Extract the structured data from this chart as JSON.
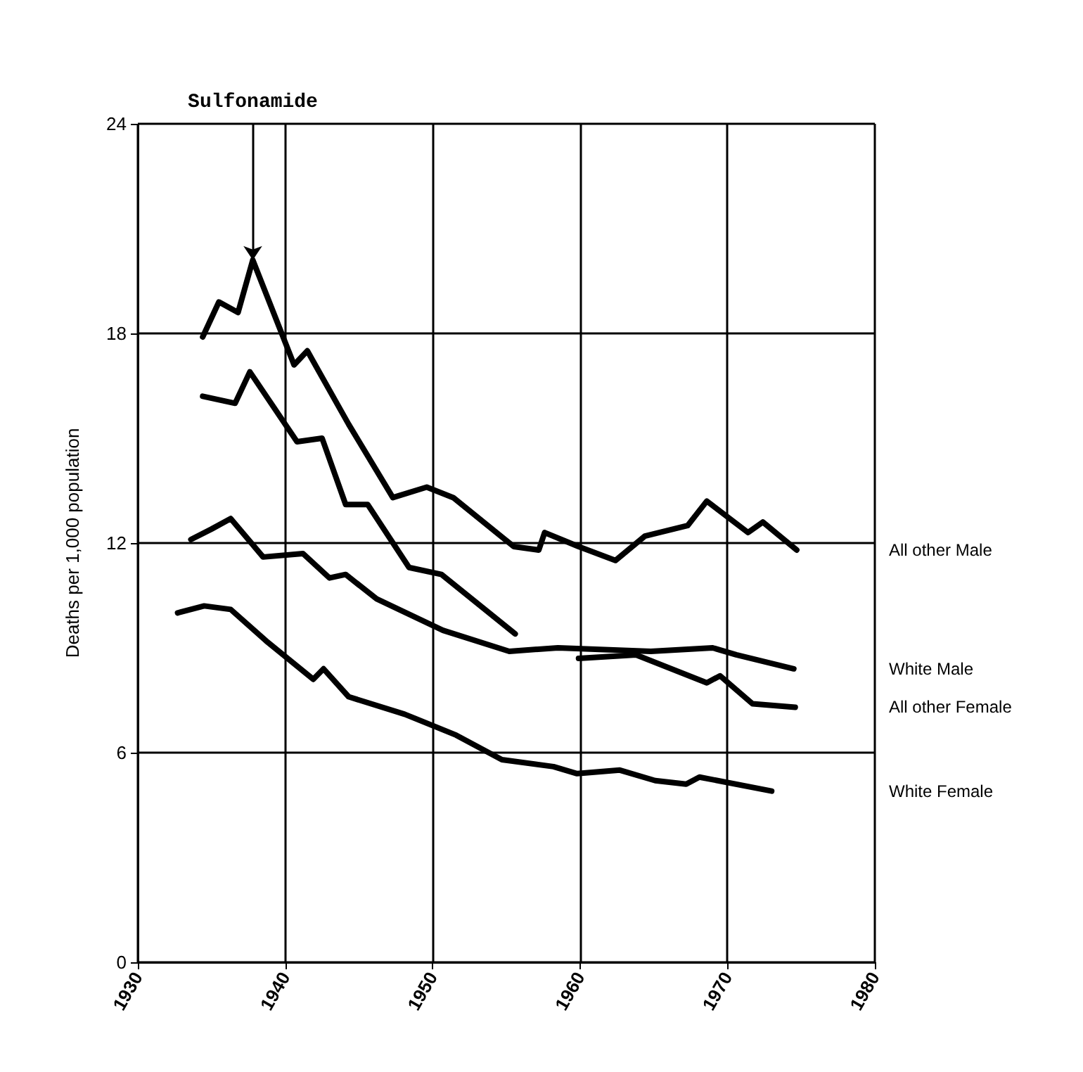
{
  "chart_data": {
    "type": "line",
    "ylabel": "Deaths per 1,000 population",
    "annotations": [
      {
        "text": "Sulfonamide",
        "x": 1937.8,
        "y": 20.1
      }
    ],
    "xlim": [
      1930,
      1980
    ],
    "xticks": [
      1930,
      1940,
      1950,
      1960,
      1970,
      1980
    ],
    "ylim": [
      0,
      24
    ],
    "yticks": [
      0,
      6,
      12,
      18,
      24
    ],
    "grid": true,
    "marker": "none",
    "line_style": "solid",
    "series": [
      {
        "name": "All other Male",
        "color": "#000000",
        "x": [
          1934.4,
          1935.5,
          1936.8,
          1937.8,
          1940.6,
          1941.5,
          1944.3,
          1947.3,
          1949.6,
          1951.4,
          1955.5,
          1957.2,
          1957.6,
          1959.9,
          1962.4,
          1964.4,
          1967.3,
          1968.6,
          1971.4,
          1972.4,
          1974.7
        ],
        "values": [
          17.9,
          18.9,
          18.6,
          20.1,
          17.1,
          17.5,
          15.4,
          13.3,
          13.6,
          13.3,
          11.9,
          11.8,
          12.3,
          11.9,
          11.5,
          12.2,
          12.5,
          13.2,
          12.3,
          12.6,
          11.8
        ]
      },
      {
        "name": "White Male",
        "color": "#000000",
        "x": [
          1933.6,
          1935,
          1936.3,
          1938.5,
          1941.2,
          1943,
          1944.1,
          1946.2,
          1950.7,
          1955.2,
          1958.5,
          1964.8,
          1969,
          1970.6,
          1974.5
        ],
        "values": [
          12.1,
          12.4,
          12.7,
          11.6,
          11.7,
          11.0,
          11.1,
          10.4,
          9.5,
          8.9,
          9.0,
          8.9,
          9.0,
          8.8,
          8.4
        ]
      },
      {
        "name": "All other Female",
        "color": "#000000",
        "x": [
          1934.4,
          1936.6,
          1937.6,
          1940.8,
          1942.5,
          1944.1,
          1945.6,
          1948.4,
          1950.6,
          1955.6,
          1958,
          1959.9,
          1963.8,
          1968.6,
          1969.5,
          1971.7,
          1974.6
        ],
        "values": [
          16.2,
          16.0,
          16.9,
          14.9,
          15.0,
          13.1,
          13.1,
          11.3,
          11.1,
          9.4,
          null,
          8.7,
          8.8,
          8.0,
          8.2,
          7.4,
          7.3
        ]
      },
      {
        "name": "White Female",
        "color": "#000000",
        "x": [
          1932.7,
          1934.5,
          1936.3,
          1938.7,
          1941.9,
          1942.6,
          1944.3,
          1948.1,
          1951.6,
          1954.7,
          1958.2,
          1959.8,
          1962.7,
          1965.1,
          1967.2,
          1968.1,
          1973
        ],
        "values": [
          10.0,
          10.2,
          10.1,
          9.2,
          8.1,
          8.4,
          7.6,
          7.1,
          6.5,
          5.8,
          5.6,
          5.4,
          5.5,
          5.2,
          5.1,
          5.3,
          4.9
        ]
      }
    ]
  }
}
